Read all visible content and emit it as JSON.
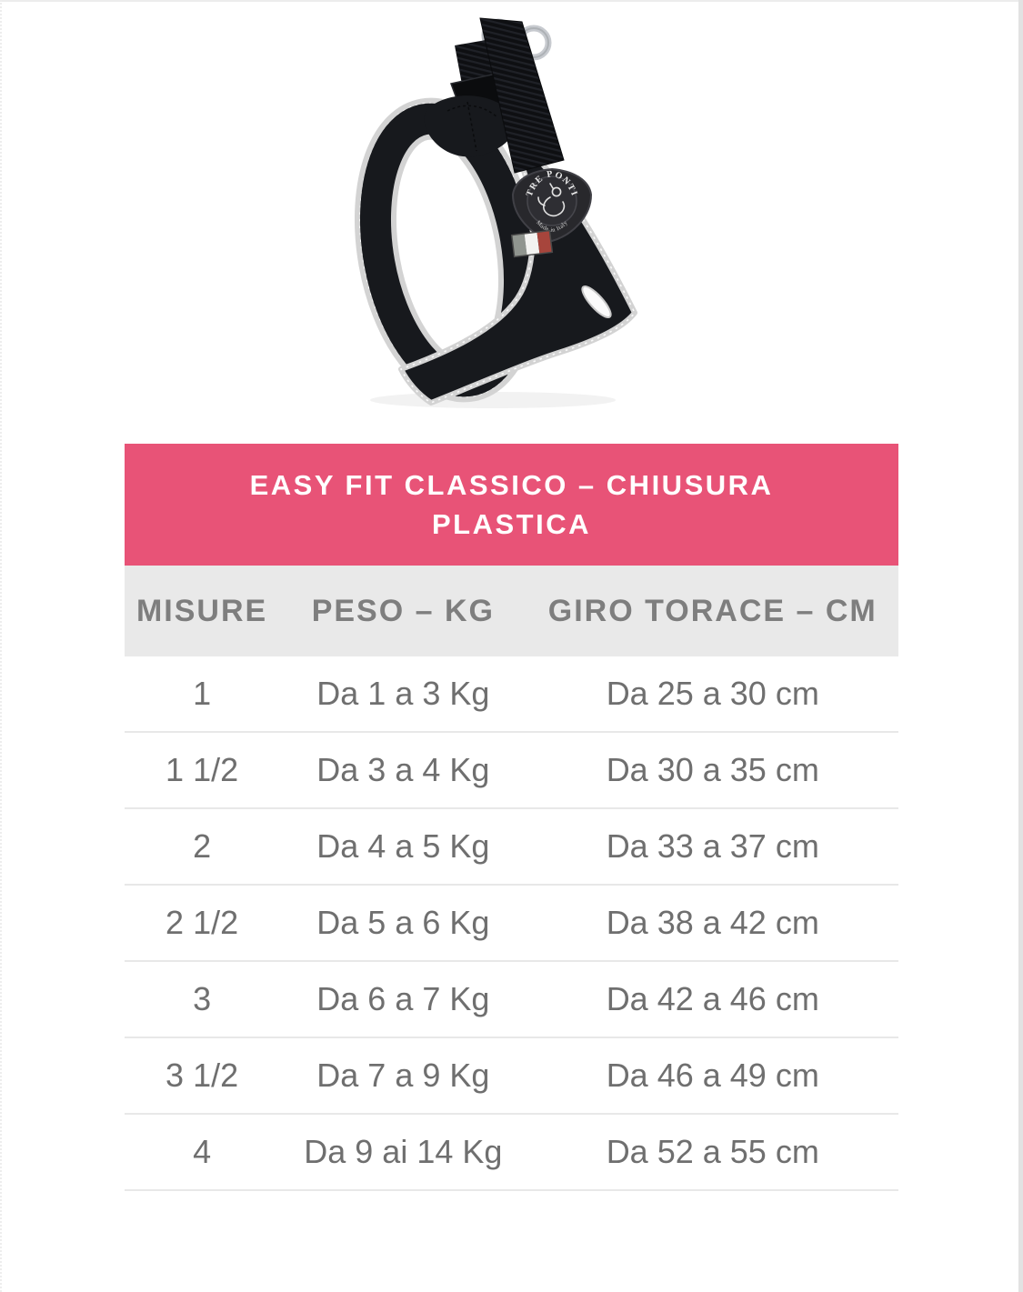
{
  "colors": {
    "accent_pink": "#e85377",
    "header_gray": "#e9e9e9",
    "header_text": "#7e7e7e",
    "row_text": "#6f6f6f",
    "divider": "#e8e8e8"
  },
  "product": {
    "name": "harness-product-photo",
    "badge_line1": "TRE PONTI",
    "badge_line2": "Made in Italy"
  },
  "table": {
    "title": "EASY FIT CLASSICO – CHIUSURA PLASTICA",
    "columns": [
      "MISURE",
      "PESO – KG",
      "GIRO TORACE – CM"
    ],
    "rows": [
      [
        "1",
        "Da 1 a 3 Kg",
        "Da 25 a 30 cm"
      ],
      [
        "1 1/2",
        "Da 3 a 4 Kg",
        "Da 30 a 35 cm"
      ],
      [
        "2",
        "Da 4 a 5 Kg",
        "Da 33 a 37 cm"
      ],
      [
        "2 1/2",
        "Da 5 a 6 Kg",
        "Da 38 a 42 cm"
      ],
      [
        "3",
        "Da 6 a 7 Kg",
        "Da 42 a 46 cm"
      ],
      [
        "3 1/2",
        "Da 7 a 9 Kg",
        "Da 46 a 49 cm"
      ],
      [
        "4",
        "Da 9 ai 14 Kg",
        "Da 52 a 55 cm"
      ]
    ]
  }
}
